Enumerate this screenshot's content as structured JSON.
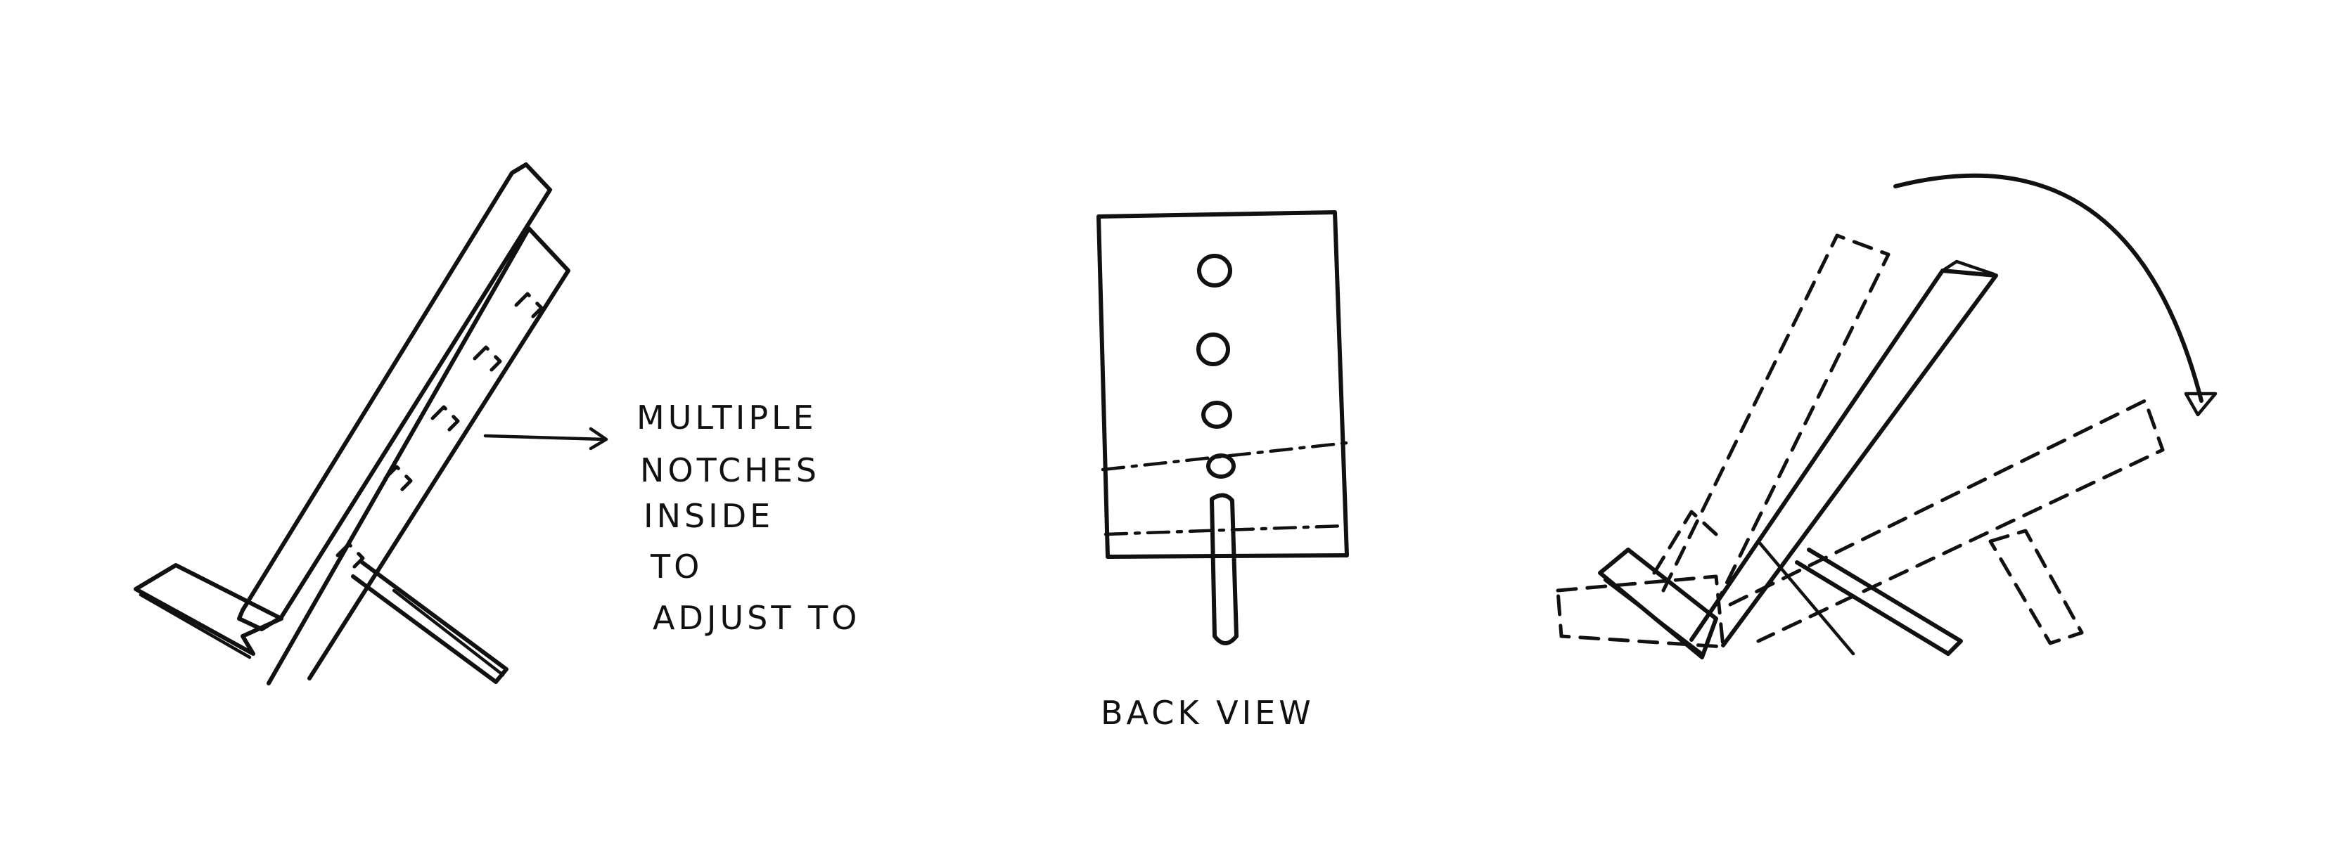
{
  "figure": {
    "background": "#ffffff",
    "ink": "#111111",
    "annotation_lines": [
      "MULTIPLE",
      "NOTCHES",
      "INSIDE",
      "TO",
      "ADJUST TO"
    ],
    "back_view_label": "BACK VIEW"
  }
}
